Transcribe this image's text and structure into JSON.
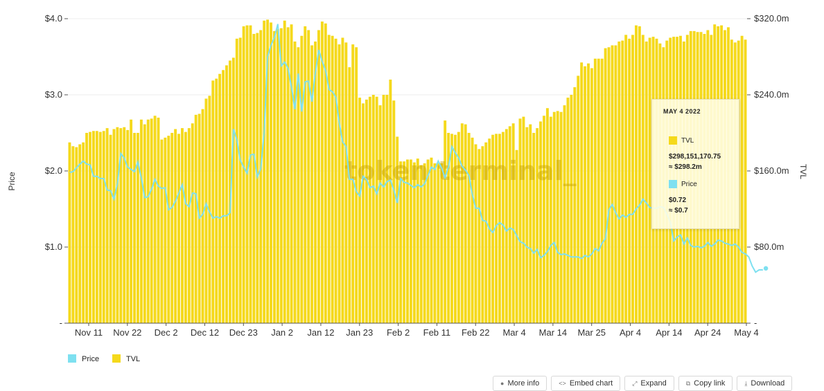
{
  "chart_data": {
    "type": "bar+line",
    "watermark": "token terminal_",
    "y_left": {
      "label": "Price",
      "ticks": [
        "$4.0",
        "$3.0",
        "$2.0",
        "$1.0",
        "-"
      ],
      "range": [
        0,
        4
      ]
    },
    "y_right": {
      "label": "TVL",
      "ticks": [
        "$320.0m",
        "$240.0m",
        "$160.0m",
        "$80.0m",
        "-"
      ],
      "range": [
        0,
        320
      ]
    },
    "x_ticks": [
      "Nov 11",
      "Nov 22",
      "Dec 2",
      "Dec 12",
      "Dec 23",
      "Jan 2",
      "Jan 12",
      "Jan 23",
      "Feb 2",
      "Feb 11",
      "Feb 22",
      "Mar 4",
      "Mar 14",
      "Mar 25",
      "Apr 4",
      "Apr 14",
      "Apr 24",
      "May 4"
    ],
    "series": [
      {
        "name": "TVL",
        "type": "bar",
        "color": "#f5d91c",
        "unit": "$m",
        "values": [
          190,
          186,
          185,
          188,
          190,
          200,
          201,
          202,
          202,
          201,
          202,
          205,
          198,
          204,
          206,
          205,
          206,
          203,
          214,
          200,
          200,
          214,
          209,
          214,
          215,
          218,
          216,
          193,
          195,
          197,
          200,
          204,
          199,
          205,
          201,
          205,
          210,
          219,
          220,
          225,
          236,
          239,
          255,
          257,
          262,
          266,
          271,
          276,
          279,
          299,
          300,
          312,
          313,
          313,
          304,
          305,
          308,
          318,
          319,
          316,
          307,
          309,
          310,
          318,
          311,
          314,
          296,
          290,
          302,
          312,
          308,
          292,
          296,
          308,
          317,
          315,
          303,
          302,
          299,
          293,
          300,
          295,
          269,
          293,
          290,
          237,
          231,
          235,
          238,
          240,
          238,
          229,
          240,
          240,
          256,
          234,
          196,
          170,
          170,
          172,
          172,
          169,
          173,
          166,
          168,
          172,
          174,
          168,
          168,
          168,
          213,
          200,
          199,
          198,
          201,
          210,
          209,
          200,
          195,
          188,
          183,
          186,
          190,
          194,
          198,
          199,
          199,
          201,
          204,
          207,
          210,
          182,
          215,
          217,
          206,
          209,
          200,
          205,
          212,
          218,
          226,
          217,
          222,
          223,
          222,
          229,
          237,
          240,
          248,
          260,
          274,
          270,
          273,
          268,
          278,
          278,
          278,
          289,
          290,
          292,
          292,
          296,
          297,
          303,
          299,
          303,
          313,
          312,
          303,
          296,
          300,
          301,
          299,
          294,
          290,
          297,
          300,
          301,
          301,
          302,
          296,
          303,
          307,
          307,
          306,
          306,
          304,
          308,
          303,
          314,
          312,
          313,
          308,
          311,
          298,
          295,
          297,
          302,
          298
        ]
      },
      {
        "name": "Price",
        "type": "line",
        "color": "#7ee0f0",
        "values": [
          1.98,
          1.99,
          2.04,
          2.09,
          2.13,
          2.09,
          2.08,
          1.93,
          1.93,
          1.9,
          1.9,
          1.75,
          1.74,
          1.63,
          1.83,
          2.23,
          2.17,
          2.05,
          2.02,
          1.99,
          2.12,
          1.91,
          1.65,
          1.66,
          1.76,
          1.89,
          1.8,
          1.77,
          1.78,
          1.49,
          1.52,
          1.6,
          1.71,
          1.82,
          1.57,
          1.53,
          1.71,
          1.7,
          1.38,
          1.43,
          1.57,
          1.46,
          1.38,
          1.4,
          1.38,
          1.41,
          1.41,
          1.45,
          2.55,
          2.41,
          2.14,
          2.05,
          1.97,
          2.21,
          2.22,
          1.92,
          2.03,
          2.5,
          3.5,
          3.65,
          3.75,
          3.93,
          3.38,
          3.43,
          3.35,
          3.1,
          2.81,
          3.28,
          2.78,
          3.17,
          3.18,
          2.91,
          3.29,
          3.59,
          3.44,
          3.32,
          3.07,
          3.04,
          2.97,
          2.63,
          2.38,
          2.32,
          1.89,
          1.89,
          1.73,
          1.67,
          1.93,
          1.89,
          1.78,
          1.8,
          1.7,
          1.84,
          1.79,
          1.86,
          1.88,
          1.75,
          1.58,
          1.9,
          1.85,
          1.84,
          1.81,
          1.78,
          1.82,
          1.79,
          1.83,
          1.94,
          2.05,
          2.02,
          2.13,
          2.04,
          1.91,
          2.05,
          2.32,
          2.24,
          2.17,
          2.06,
          2.01,
          1.94,
          1.69,
          1.51,
          1.51,
          1.35,
          1.34,
          1.24,
          1.19,
          1.28,
          1.32,
          1.29,
          1.21,
          1.25,
          1.23,
          1.15,
          1.07,
          1.05,
          1.0,
          0.98,
          0.92,
          0.97,
          0.86,
          0.89,
          0.94,
          1.02,
          1.06,
          0.93,
          0.9,
          0.91,
          0.89,
          0.87,
          0.87,
          0.87,
          0.85,
          0.89,
          0.87,
          0.91,
          0.98,
          0.95,
          1.05,
          1.11,
          1.49,
          1.56,
          1.45,
          1.37,
          1.42,
          1.39,
          1.43,
          1.43,
          1.5,
          1.55,
          1.63,
          1.58,
          1.52,
          1.51,
          1.51,
          1.53,
          1.52,
          1.43,
          1.33,
          1.08,
          1.13,
          1.16,
          1.04,
          1.12,
          1.02,
          1.0,
          1.01,
          0.99,
          1.01,
          1.06,
          1.01,
          1.04,
          1.09,
          1.08,
          1.05,
          1.04,
          1.02,
          1.04,
          1.0,
          0.93,
          0.91,
          0.87,
          0.75,
          0.67,
          0.7,
          0.7,
          0.72
        ]
      }
    ],
    "legend": {
      "position": "bottom-left",
      "items": [
        {
          "name": "Price",
          "color": "#7ee0f0"
        },
        {
          "name": "TVL",
          "color": "#f5d91c"
        }
      ]
    },
    "tooltip": {
      "date": "MAY 4 2022",
      "tvl_label": "TVL",
      "tvl_value": "$298,151,170.75",
      "tvl_approx": "≈ $298.2m",
      "price_label": "Price",
      "price_value": "$0.72",
      "price_approx": "≈ $0.7"
    }
  },
  "buttons": {
    "more_info": "More info",
    "embed": "Embed chart",
    "expand": "Expand",
    "copy_link": "Copy link",
    "download": "Download"
  }
}
